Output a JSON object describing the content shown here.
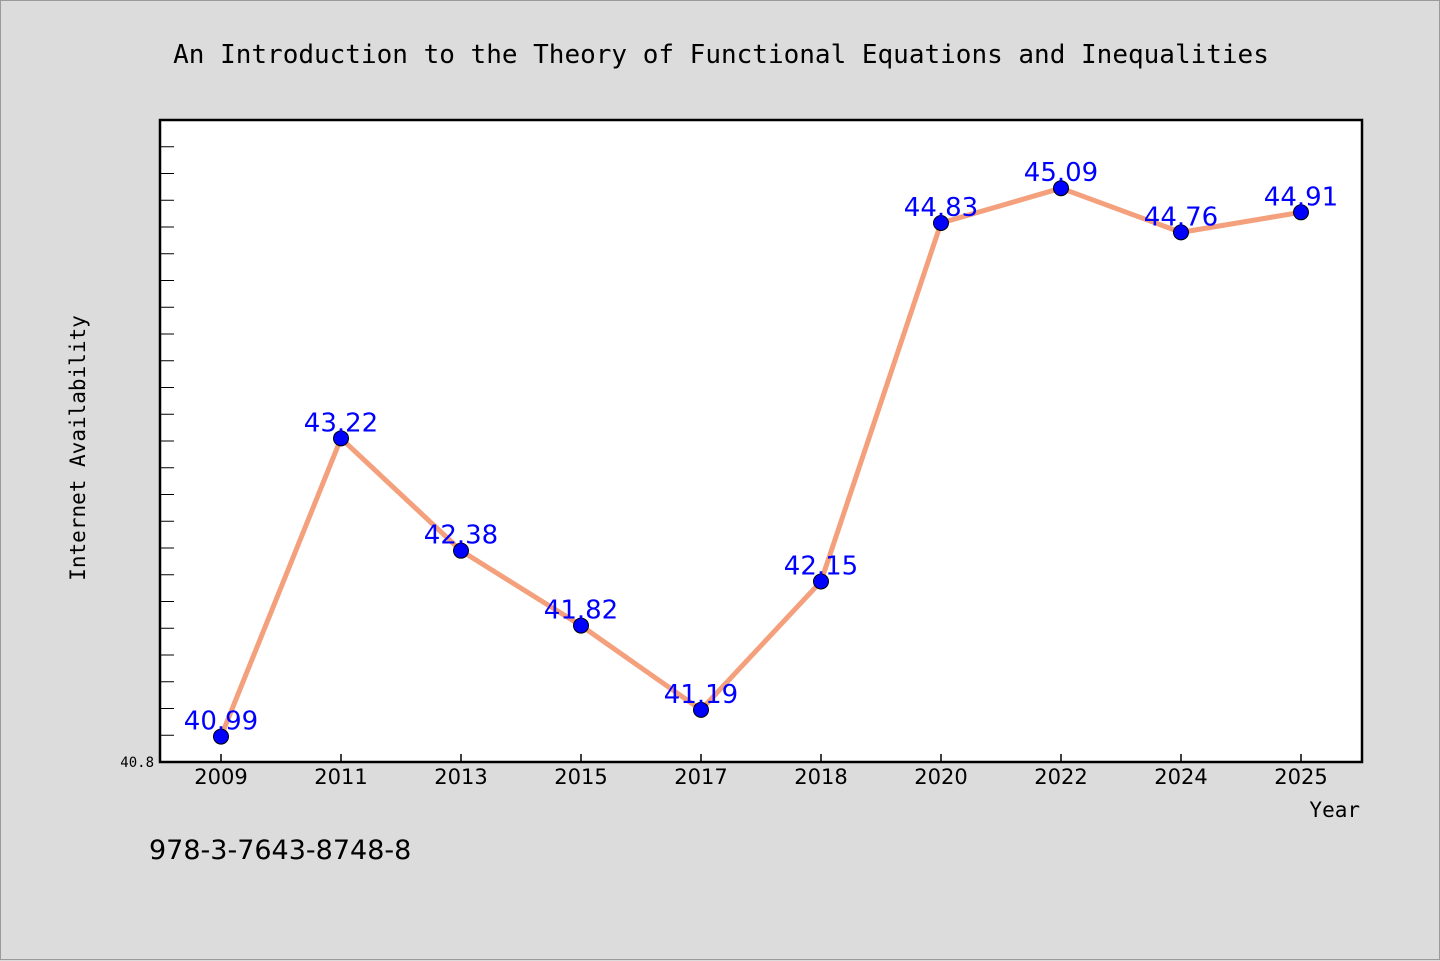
{
  "chart_data": {
    "type": "line",
    "title": "An Introduction to the Theory of Functional Equations and Inequalities",
    "xlabel": "Year",
    "ylabel": "Internet Availability",
    "categories": [
      "2009",
      "2011",
      "2013",
      "2015",
      "2017",
      "2018",
      "2020",
      "2022",
      "2024",
      "2025"
    ],
    "series": [
      {
        "values": [
          40.99,
          43.22,
          42.38,
          41.82,
          41.19,
          42.15,
          44.83,
          45.09,
          44.76,
          44.91
        ]
      }
    ],
    "ylim": [
      40.8,
      45.6
    ],
    "y_tick_labels": [
      "40.8"
    ],
    "line_color": "#f4a07c",
    "marker_color": "#0000ff",
    "label_color": "#0000ff",
    "grid": false,
    "legend": "none"
  },
  "footer": {
    "isbn": "978-3-7643-8748-8"
  }
}
